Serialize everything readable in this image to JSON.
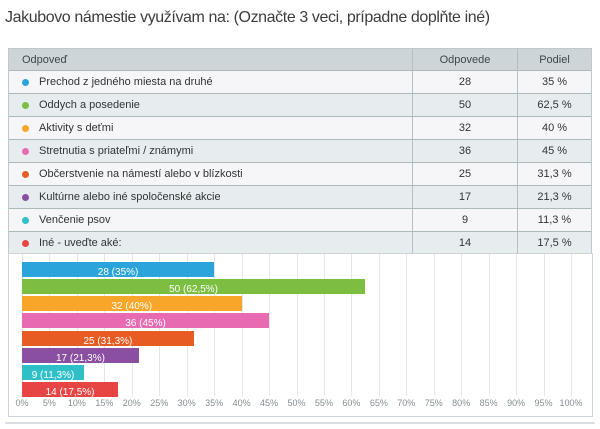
{
  "page_title": "Jakubovo námestie využívam na: (Označte 3 veci, prípadne doplňte iné)",
  "table": {
    "headers": {
      "answer": "Odpoveď",
      "responses": "Odpovede",
      "share": "Podiel"
    },
    "rows": [
      {
        "label": "Prechod z jedného miesta na druhé",
        "responses": "28",
        "share": "35 %"
      },
      {
        "label": "Oddych a posedenie",
        "responses": "50",
        "share": "62,5 %"
      },
      {
        "label": "Aktivity s deťmi",
        "responses": "32",
        "share": "40 %"
      },
      {
        "label": "Stretnutia s priateľmi / známymi",
        "responses": "36",
        "share": "45 %"
      },
      {
        "label": "Občerstvenie na námestí alebo v blízkosti",
        "responses": "25",
        "share": "31,3 %"
      },
      {
        "label": "Kultúrne alebo iné spoločenské akcie",
        "responses": "17",
        "share": "21,3 %"
      },
      {
        "label": "Venčenie psov",
        "responses": "9",
        "share": "11,3 %"
      },
      {
        "label": "Iné - uveďte aké:",
        "responses": "14",
        "share": "17,5 %"
      }
    ]
  },
  "chart_data": {
    "type": "bar",
    "orientation": "horizontal",
    "title": "",
    "xlabel": "",
    "ylabel": "",
    "categories": [
      "Prechod z jedného miesta na druhé",
      "Oddych a posedenie",
      "Aktivity s deťmi",
      "Stretnutia s priateľmi / známymi",
      "Občerstvenie na námestí alebo v blízkosti",
      "Kultúrne alebo iné spoločenské akcie",
      "Venčenie psov",
      "Iné - uveďte aké:"
    ],
    "series": [
      {
        "name": "Podiel (%)",
        "values": [
          35,
          62.5,
          40,
          45,
          31.3,
          21.3,
          11.3,
          17.5
        ]
      }
    ],
    "counts": [
      28,
      50,
      32,
      36,
      25,
      17,
      9,
      14
    ],
    "bar_labels": [
      "28 (35%)",
      "50 (62,5%)",
      "32 (40%)",
      "36 (45%)",
      "25 (31,3%)",
      "17 (21,3%)",
      "9 (11,3%)",
      "14 (17,5%)"
    ],
    "bar_colors": [
      "#2ba3db",
      "#7cbe41",
      "#f7a629",
      "#e86bb2",
      "#e65c23",
      "#8a4fa0",
      "#2fbfc7",
      "#e74444"
    ],
    "xlim": [
      0,
      100
    ],
    "xticks": [
      "0%",
      "5%",
      "10%",
      "15%",
      "20%",
      "25%",
      "30%",
      "35%",
      "40%",
      "45%",
      "50%",
      "55%",
      "60%",
      "65%",
      "70%",
      "75%",
      "80%",
      "85%",
      "90%",
      "95%",
      "100%"
    ],
    "grid": true,
    "legend": false
  }
}
